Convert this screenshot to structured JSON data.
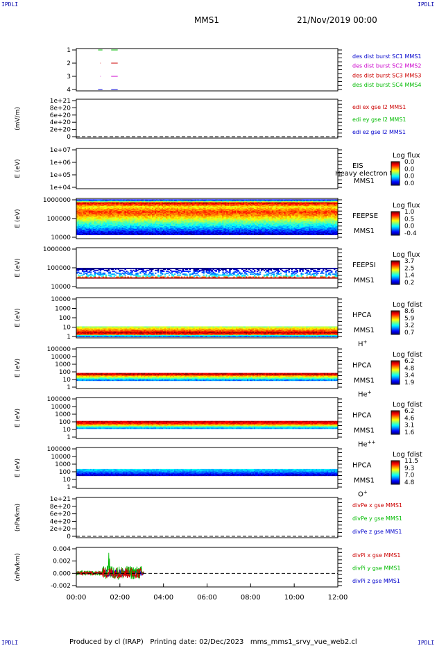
{
  "header": {
    "corner_label": "IPDLI",
    "spacecraft": "MMS1",
    "datetime": "21/Nov/2019 00:00"
  },
  "footer": {
    "produced_by": "Produced by cl (IRAP)",
    "printing_date": "Printing date: 02/Dec/2023",
    "file_name": "mms_mms1_srvy_vue_web2.cl"
  },
  "chart_data": {
    "type": "heatmap",
    "x_ticks": [
      "00:00",
      "02:00",
      "04:00",
      "06:00",
      "08:00",
      "10:00",
      "12:00"
    ],
    "x_range_hours": [
      0,
      12
    ],
    "panels": [
      {
        "id": "burst",
        "kind": "markers",
        "ylabel": "",
        "y_ticks": [
          "1",
          "2",
          "3",
          "4"
        ],
        "ylim": [
          0.5,
          4.5
        ],
        "legend": [
          {
            "text": "des dist burst SC1 MMS1",
            "color": "#0000cc"
          },
          {
            "text": "des dist burst SC2 MMS2",
            "color": "#cc00cc"
          },
          {
            "text": "des dist burst SC3 MMS3",
            "color": "#cc0000"
          },
          {
            "text": "des dist burst SC4 MMS4",
            "color": "#00bb00"
          }
        ],
        "series": [
          {
            "level": 4,
            "color": "#00bb00",
            "segments": [
              [
                1.0,
                1.2
              ],
              [
                1.6,
                1.9
              ]
            ]
          },
          {
            "level": 3,
            "color": "#cc0000",
            "segments": [
              [
                1.1,
                1.12
              ],
              [
                1.6,
                1.9
              ]
            ]
          },
          {
            "level": 2,
            "color": "#cc00cc",
            "segments": [
              [
                1.1,
                1.12
              ],
              [
                1.6,
                1.9
              ]
            ]
          },
          {
            "level": 1,
            "color": "#0000cc",
            "segments": [
              [
                1.0,
                1.2
              ],
              [
                1.6,
                1.9
              ]
            ]
          }
        ]
      },
      {
        "id": "edi",
        "kind": "empty",
        "ylabel": "(mV/m)",
        "y_ticks": [
          "1e+21",
          "8e+20",
          "6e+20",
          "4e+20",
          "2e+20",
          "0"
        ],
        "ylim": [
          0,
          1.1
        ],
        "zero_line": true,
        "legend": [
          {
            "text": "edi ex gse l2 MMS1",
            "color": "#cc0000"
          },
          {
            "text": "edi ey gse l2 MMS1",
            "color": "#00bb00"
          },
          {
            "text": "edi ez gse l2 MMS1",
            "color": "#0000cc"
          }
        ]
      },
      {
        "id": "eis",
        "kind": "empty",
        "ylabel": "E (eV)",
        "y_ticks": [
          "1e+07",
          "1e+06",
          "1e+05",
          "1e+04"
        ],
        "ylim": [
          4,
          7
        ],
        "instrument": "EIS",
        "instrument_sub": "MMS1",
        "extra_label": "Heavy electron to",
        "colorbar": {
          "title": "Log flux",
          "values": [
            "0.0",
            "0.0",
            "0.0",
            "0.0"
          ]
        }
      },
      {
        "id": "feepse",
        "kind": "spectrogram",
        "ylabel": "E (eV)",
        "y_ticks": [
          "1000000",
          "100000",
          "10000"
        ],
        "ylim": [
          4,
          6
        ],
        "instrument": "FEEPSE",
        "instrument_sub": "MMS1",
        "colorbar": {
          "title": "Log flux",
          "values": [
            "1.0",
            "0.5",
            "0.0",
            "-0.4"
          ]
        },
        "profile": [
          [
            0.02,
            0.05
          ],
          [
            0.06,
            0.4
          ],
          [
            0.1,
            0.95
          ],
          [
            0.14,
            0.82
          ],
          [
            0.2,
            0.62
          ],
          [
            0.26,
            0.72
          ],
          [
            0.32,
            0.82
          ],
          [
            0.4,
            0.75
          ],
          [
            0.5,
            0.6
          ],
          [
            0.58,
            0.48
          ],
          [
            0.66,
            0.38
          ],
          [
            0.72,
            0.3
          ],
          [
            0.78,
            0.2
          ],
          [
            0.84,
            0.12
          ],
          [
            0.9,
            0.05
          ]
        ],
        "noise": 0.07
      },
      {
        "id": "feepsi",
        "kind": "spectrogram",
        "ylabel": "E (eV)",
        "y_ticks": [
          "1000000",
          "100000",
          "10000"
        ],
        "ylim": [
          4,
          6
        ],
        "instrument": "FEEPSI",
        "instrument_sub": "MMS1",
        "colorbar": {
          "title": "Log flux",
          "values": [
            "3.7",
            "2.5",
            "1.4",
            "0.2"
          ]
        },
        "profile": [
          [
            0.5,
            0.0
          ],
          [
            0.54,
            0.04
          ],
          [
            0.58,
            0.18
          ],
          [
            0.62,
            0.22
          ],
          [
            0.66,
            0.3
          ],
          [
            0.7,
            0.42
          ],
          [
            0.72,
            0.9
          ],
          [
            0.74,
            1.0
          ],
          [
            0.76,
            0.95
          ]
        ],
        "sparse_top": [
          0.52,
          0.72
        ],
        "noise": 0.05
      },
      {
        "id": "hpca_h",
        "kind": "spectrogram",
        "ylabel": "E (eV)",
        "y_ticks": [
          "10000",
          "1000",
          "100",
          "10",
          "1"
        ],
        "ylim": [
          0,
          4.3
        ],
        "instrument": "HPCA",
        "instrument_sub": "MMS1",
        "species": "H",
        "species_sup": "+",
        "colorbar": {
          "title": "Log fdist",
          "values": [
            "8.6",
            "5.9",
            "3.2",
            "0.7"
          ]
        },
        "profile": [
          [
            0.7,
            0.5
          ],
          [
            0.74,
            0.6
          ],
          [
            0.78,
            0.72
          ],
          [
            0.82,
            0.8
          ],
          [
            0.86,
            0.95
          ],
          [
            0.9,
            0.85
          ],
          [
            0.93,
            0.4
          ],
          [
            0.97,
            0.12
          ]
        ],
        "noise": 0.06
      },
      {
        "id": "hpca_he1",
        "kind": "spectrogram",
        "ylabel": "E (eV)",
        "y_ticks": [
          "100000",
          "10000",
          "1000",
          "100",
          "10",
          "1"
        ],
        "ylim": [
          0,
          5.1
        ],
        "instrument": "HPCA",
        "instrument_sub": "MMS1",
        "species": "He",
        "species_sup": "+",
        "colorbar": {
          "title": "Log fdist",
          "values": [
            "6.2",
            "4.8",
            "3.4",
            "1.9"
          ]
        },
        "profile": [
          [
            0.6,
            0.9
          ],
          [
            0.64,
            0.95
          ],
          [
            0.68,
            0.7
          ],
          [
            0.72,
            0.55
          ],
          [
            0.76,
            0.35
          ],
          [
            0.8,
            0.2
          ]
        ],
        "noise": 0.06
      },
      {
        "id": "hpca_he2",
        "kind": "spectrogram",
        "ylabel": "E (eV)",
        "y_ticks": [
          "100000",
          "10000",
          "1000",
          "100",
          "10",
          "1"
        ],
        "ylim": [
          0,
          5.1
        ],
        "instrument": "HPCA",
        "instrument_sub": "MMS1",
        "species": "He",
        "species_sup": "++",
        "colorbar": {
          "title": "Log fdist",
          "values": [
            "6.2",
            "4.6",
            "3.1",
            "1.6"
          ]
        },
        "profile": [
          [
            0.55,
            0.95
          ],
          [
            0.6,
            0.9
          ],
          [
            0.64,
            0.8
          ],
          [
            0.68,
            0.55
          ],
          [
            0.72,
            0.35
          ],
          [
            0.76,
            0.2
          ]
        ],
        "noise": 0.05
      },
      {
        "id": "hpca_o",
        "kind": "spectrogram",
        "ylabel": "E (eV)",
        "y_ticks": [
          "100000",
          "10000",
          "1000",
          "100",
          "10",
          "1"
        ],
        "ylim": [
          0,
          5.1
        ],
        "instrument": "HPCA",
        "instrument_sub": "MMS1",
        "species": "O",
        "species_sup": "+",
        "colorbar": {
          "title": "Log fdist",
          "values": [
            "11.5",
            "9.3",
            "7.0",
            "4.8"
          ]
        },
        "profile": [
          [
            0.52,
            0.35
          ],
          [
            0.56,
            0.3
          ],
          [
            0.6,
            0.22
          ],
          [
            0.64,
            0.12
          ],
          [
            0.68,
            0.05
          ]
        ],
        "noise": 0.05
      },
      {
        "id": "divpe",
        "kind": "empty",
        "ylabel": "(nPa/km)",
        "y_ticks": [
          "1e+21",
          "8e+20",
          "6e+20",
          "4e+20",
          "2e+20",
          "0"
        ],
        "ylim": [
          0,
          1.1
        ],
        "zero_line": true,
        "legend": [
          {
            "text": "divPe x gse MMS1",
            "color": "#cc0000"
          },
          {
            "text": "divPe y gse MMS1",
            "color": "#00bb00"
          },
          {
            "text": "divPe z gse MMS1",
            "color": "#0000cc"
          }
        ]
      },
      {
        "id": "divpi",
        "kind": "lines",
        "ylabel": "(nPa/km)",
        "y_ticks": [
          "0.004",
          "0.002",
          "0.000",
          "-0.002"
        ],
        "ylim": [
          -0.0022,
          0.0042
        ],
        "zero_line": true,
        "data_until_hours": 3.1,
        "legend": [
          {
            "text": "divPi x gse MMS1",
            "color": "#cc0000"
          },
          {
            "text": "divPi y gse MMS1",
            "color": "#00bb00"
          },
          {
            "text": "divPi z gse MMS1",
            "color": "#0000cc"
          }
        ]
      }
    ]
  }
}
